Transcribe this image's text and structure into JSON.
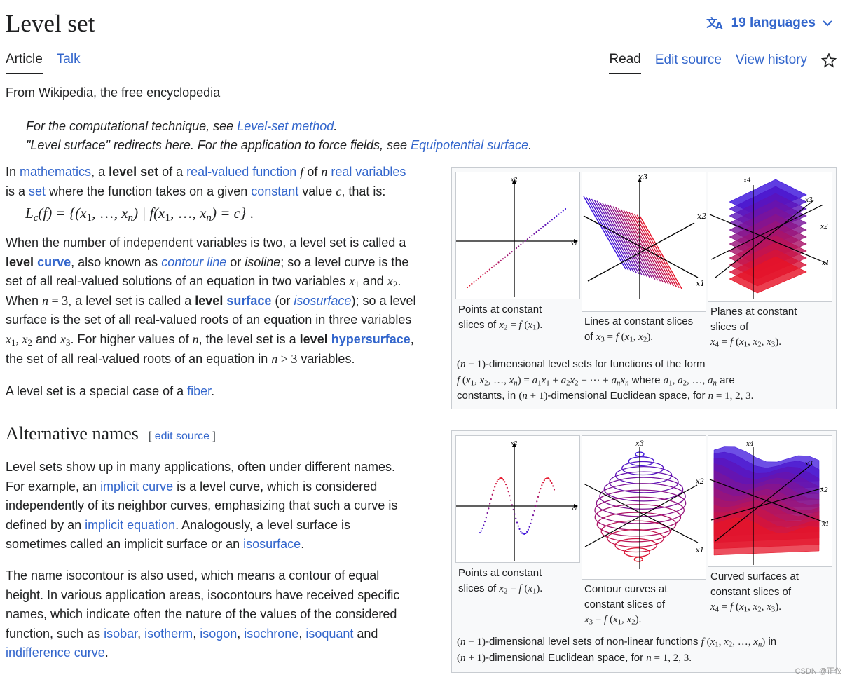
{
  "page": {
    "title": "Level set",
    "languages": "19 languages",
    "tabs_left": [
      "Article",
      "Talk"
    ],
    "tabs_right": [
      "Read",
      "Edit source",
      "View history"
    ],
    "tagline": "From Wikipedia, the free encyclopedia"
  },
  "hatnotes": {
    "h1_pre": "For the computational technique, see ",
    "h1_link": "Level-set method",
    "h1_post": ".",
    "h2_pre": "\"Level surface\" redirects here. For the application to force fields, see ",
    "h2_link": "Equipotential surface",
    "h2_post": "."
  },
  "intro": {
    "t1": "In ",
    "l_math": "mathematics",
    "t2": ", a ",
    "b_levelset": "level set",
    "t3": " of a ",
    "l_realfn": "real-valued function",
    "t4": " of ",
    "l_realvars": "real variables",
    "t5": "is a ",
    "l_set": "set",
    "t6": " where the function takes on a given ",
    "l_const": "constant",
    "t7": " value ",
    "t8": ", that is:"
  },
  "formula": "L_c(f) = {(x1, …, xn) | f(x1, …, xn) = c} .",
  "p2": {
    "a": "When the number of independent variables is two, a level set is called a",
    "b_level": "level",
    "l_curve": "curve",
    "c": ", also known as ",
    "l_contour": "contour line",
    "d": " or ",
    "e_isoline": "isoline",
    "f": "; so a level curve is the",
    "g": "set of all real-valued solutions of an equation in two variables ",
    "h": " and ",
    "i": "When ",
    "j": ", a level set is called a ",
    "l_surface": "surface",
    "k": " (or ",
    "l_isosurface": "isosurface",
    "l": "); so a level",
    "m": "surface is the set of all real-valued roots of an equation in three variables",
    "n": " and ",
    "o": ". For higher values of ",
    "p": ", the level set is a ",
    "l_hyper": "hypersurface",
    "q": "the set of all real-valued roots of an equation in ",
    "r": " variables."
  },
  "p3": {
    "a": "A level set is a special case of a ",
    "l_fiber": "fiber",
    "b": "."
  },
  "section": {
    "title": "Alternative names",
    "edit": "edit source"
  },
  "p4": {
    "a": "Level sets show up in many applications, often under different names.",
    "b": "For example, an ",
    "l_implicit_curve": "implicit curve",
    "c": " is a level curve, which is considered",
    "d": "independently of its neighbor curves, emphasizing that such a curve is",
    "e": "defined by an ",
    "l_implicit_eq": "implicit equation",
    "f": ". Analogously, a level surface is",
    "g": "sometimes called an implicit surface or an ",
    "l_isosurface": "isosurface",
    "h": "."
  },
  "p5": {
    "a": "The name isocontour is also used, which means a contour of equal",
    "b": "height. In various application areas, isocontours have received specific",
    "c": "names, which indicate often the nature of the values of the considered",
    "d": "function, such as ",
    "links": [
      "isobar",
      "isotherm",
      "isogon",
      "isochrone",
      "isoquant"
    ],
    "e": " and",
    "l_indiff": "indifference curve",
    "f": "."
  },
  "fig1": {
    "cap1_a": "Points at constant",
    "cap1_b": "slices of",
    "cap2_a": "Lines at constant slices",
    "cap2_b": "of",
    "cap3_a": "Planes at constant",
    "cap3_b": "slices of",
    "caption_a": "-dimensional level sets for functions of the form",
    "caption_b": "where",
    "caption_c": "are",
    "caption_d": "constants, in",
    "caption_e": "-dimensional Euclidean space, for"
  },
  "fig2": {
    "cap1_a": "Points at constant",
    "cap1_b": "slices of",
    "cap2_a": "Contour curves at",
    "cap2_b": "constant slices of",
    "cap3_a": "Curved surfaces at",
    "cap3_b": "constant slices of",
    "caption_a": "-dimensional level sets of non-linear functions",
    "caption_b": "in",
    "caption_c": "-dimensional Euclidean space, for"
  },
  "axis_labels": [
    "x1",
    "x2",
    "x3",
    "x4"
  ],
  "watermark": "CSDN @正仪",
  "colors": {
    "link": "#3366cc",
    "text": "#202122",
    "border": "#a2a9b1"
  }
}
